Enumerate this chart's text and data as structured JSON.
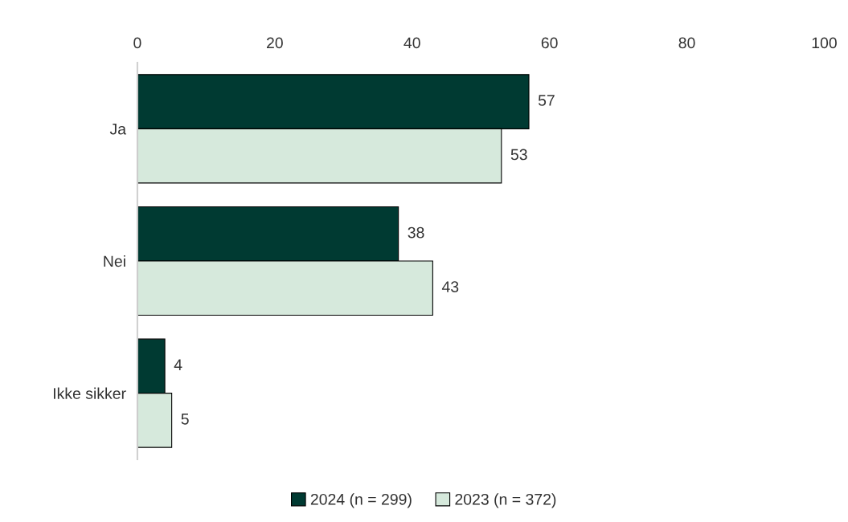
{
  "chart_data": {
    "type": "bar",
    "orientation": "horizontal",
    "categories": [
      "Ja",
      "Nei",
      "Ikke sikker"
    ],
    "series": [
      {
        "name": "2024 (n = 299)",
        "color": "#003a32",
        "values": [
          57,
          38,
          4
        ]
      },
      {
        "name": "2023 (n = 372)",
        "color": "#d6e9dc",
        "values": [
          53,
          43,
          5
        ]
      }
    ],
    "xlim": [
      0,
      100
    ],
    "xticks": [
      0,
      20,
      40,
      60,
      80,
      100
    ],
    "data_labels": true,
    "grid": false,
    "legend": "bottom"
  }
}
